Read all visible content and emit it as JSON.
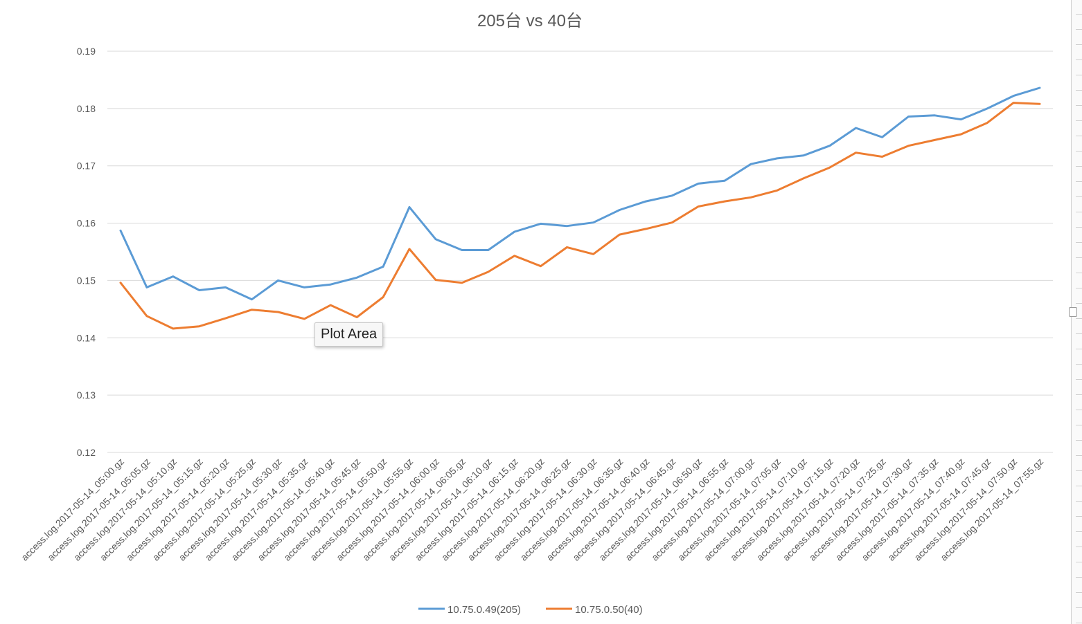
{
  "chart_data": {
    "type": "line",
    "title": "205台  vs 40台",
    "ylim": [
      0.12,
      0.19
    ],
    "yticks": [
      "0.19",
      "0.18",
      "0.17",
      "0.16",
      "0.15",
      "0.14",
      "0.13",
      "0.12"
    ],
    "grid": true,
    "legend_position": "bottom",
    "categories": [
      "access.log.2017-05-14_05:00.gz",
      "access.log.2017-05-14_05:05.gz",
      "access.log.2017-05-14_05:10.gz",
      "access.log.2017-05-14_05:15.gz",
      "access.log.2017-05-14_05:20.gz",
      "access.log.2017-05-14_05:25.gz",
      "access.log.2017-05-14_05:30.gz",
      "access.log.2017-05-14_05:35.gz",
      "access.log.2017-05-14_05:40.gz",
      "access.log.2017-05-14_05:45.gz",
      "access.log.2017-05-14_05:50.gz",
      "access.log.2017-05-14_05:55.gz",
      "access.log.2017-05-14_06:00.gz",
      "access.log.2017-05-14_06:05.gz",
      "access.log.2017-05-14_06:10.gz",
      "access.log.2017-05-14_06:15.gz",
      "access.log.2017-05-14_06:20.gz",
      "access.log.2017-05-14_06:25.gz",
      "access.log.2017-05-14_06:30.gz",
      "access.log.2017-05-14_06:35.gz",
      "access.log.2017-05-14_06:40.gz",
      "access.log.2017-05-14_06:45.gz",
      "access.log.2017-05-14_06:50.gz",
      "access.log.2017-05-14_06:55.gz",
      "access.log.2017-05-14_07:00.gz",
      "access.log.2017-05-14_07:05.gz",
      "access.log.2017-05-14_07:10.gz",
      "access.log.2017-05-14_07:15.gz",
      "access.log.2017-05-14_07:20.gz",
      "access.log.2017-05-14_07:25.gz",
      "access.log.2017-05-14_07:30.gz",
      "access.log.2017-05-14_07:35.gz",
      "access.log.2017-05-14_07:40.gz",
      "access.log.2017-05-14_07:45.gz",
      "access.log.2017-05-14_07:50.gz",
      "access.log.2017-05-14_07:55.gz"
    ],
    "series": [
      {
        "name": "10.75.0.49(205)",
        "color": "#5B9BD5",
        "values": [
          0.1587,
          0.1488,
          0.1507,
          0.1483,
          0.1488,
          0.1467,
          0.15,
          0.1488,
          0.1493,
          0.1505,
          0.1524,
          0.1628,
          0.1572,
          0.1553,
          0.1553,
          0.1585,
          0.1599,
          0.1595,
          0.1601,
          0.1623,
          0.1638,
          0.1648,
          0.1669,
          0.1674,
          0.1703,
          0.1713,
          0.1718,
          0.1735,
          0.1766,
          0.175,
          0.1786,
          0.1788,
          0.1781,
          0.18,
          0.1822,
          0.1836
        ]
      },
      {
        "name": "10.75.0.50(40)",
        "color": "#ED7D31",
        "values": [
          0.1496,
          0.1438,
          0.1416,
          0.142,
          0.1434,
          0.1449,
          0.1445,
          0.1433,
          0.1457,
          0.1436,
          0.1471,
          0.1555,
          0.1501,
          0.1496,
          0.1515,
          0.1543,
          0.1525,
          0.1558,
          0.1546,
          0.158,
          0.159,
          0.1601,
          0.1629,
          0.1638,
          0.1645,
          0.1657,
          0.1678,
          0.1697,
          0.1723,
          0.1716,
          0.1735,
          0.1745,
          0.1755,
          0.1775,
          0.181,
          0.1808
        ]
      }
    ]
  },
  "tooltip": {
    "text": "Plot Area"
  }
}
